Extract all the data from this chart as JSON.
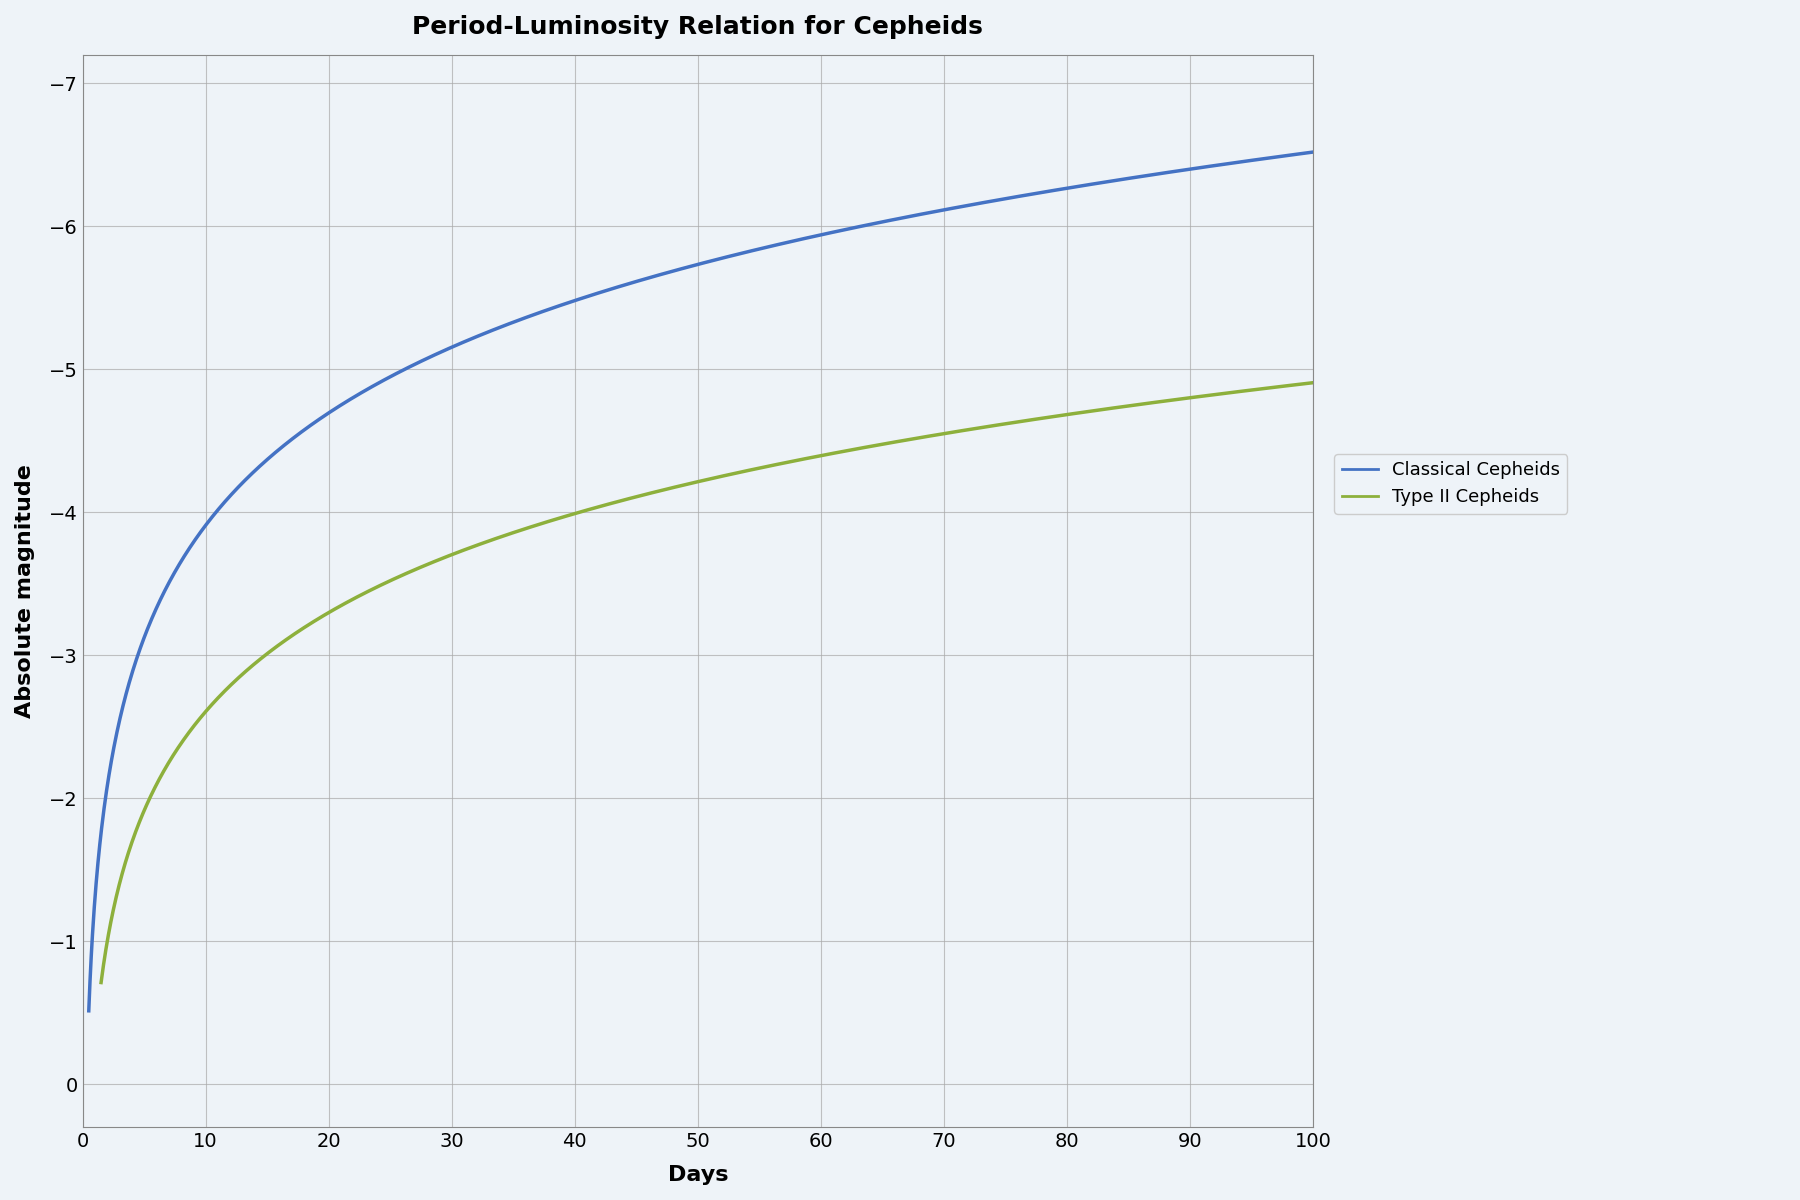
{
  "title": "Period-Luminosity Relation for Cepheids",
  "xlabel": "Days",
  "ylabel": "Absolute magnitude",
  "xlim": [
    0,
    100
  ],
  "ylim_bottom": 0.3,
  "ylim_top": -7.2,
  "xticks": [
    0,
    10,
    20,
    30,
    40,
    50,
    60,
    70,
    80,
    90,
    100
  ],
  "yticks": [
    0,
    -1,
    -2,
    -3,
    -4,
    -5,
    -6,
    -7
  ],
  "classical_color": "#4472C4",
  "typeII_color": "#8DB03C",
  "background_color": "#EEF3F8",
  "grid_color": "#AAAAAA",
  "legend_labels": [
    "Classical Cepheids",
    "Type II Cepheids"
  ],
  "classical_a": -1.3,
  "classical_b": 2.61,
  "typeII_a": -0.307,
  "typeII_b": 2.3,
  "classical_x_start": 0.5,
  "typeII_x_start": 1.5,
  "x_end": 100,
  "line_width": 2.5,
  "title_fontsize": 18,
  "label_fontsize": 16,
  "tick_fontsize": 14,
  "legend_fontsize": 13
}
